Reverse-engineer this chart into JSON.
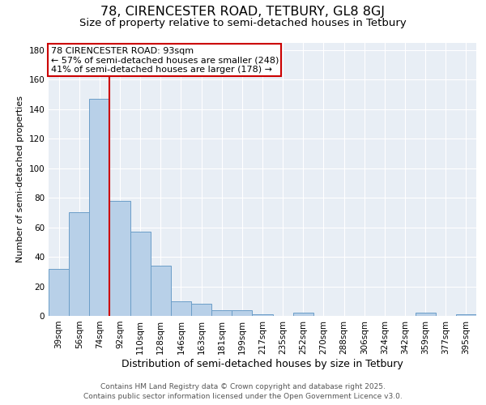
{
  "title1": "78, CIRENCESTER ROAD, TETBURY, GL8 8GJ",
  "title2": "Size of property relative to semi-detached houses in Tetbury",
  "xlabel": "Distribution of semi-detached houses by size in Tetbury",
  "ylabel": "Number of semi-detached properties",
  "categories": [
    "39sqm",
    "56sqm",
    "74sqm",
    "92sqm",
    "110sqm",
    "128sqm",
    "146sqm",
    "163sqm",
    "181sqm",
    "199sqm",
    "217sqm",
    "235sqm",
    "252sqm",
    "270sqm",
    "288sqm",
    "306sqm",
    "324sqm",
    "342sqm",
    "359sqm",
    "377sqm",
    "395sqm"
  ],
  "values": [
    32,
    70,
    147,
    78,
    57,
    34,
    10,
    8,
    4,
    4,
    1,
    0,
    2,
    0,
    0,
    0,
    0,
    0,
    2,
    0,
    1
  ],
  "bar_color": "#b8d0e8",
  "bar_edge_color": "#6b9ec8",
  "bar_edge_width": 0.7,
  "vline_index": 3,
  "vline_color": "#cc0000",
  "annotation_line0": "78 CIRENCESTER ROAD: 93sqm",
  "annotation_line1": "← 57% of semi-detached houses are smaller (248)",
  "annotation_line2": "41% of semi-detached houses are larger (178) →",
  "annotation_box_color": "#cc0000",
  "annotation_fill": "#ffffff",
  "ylim": [
    0,
    185
  ],
  "yticks": [
    0,
    20,
    40,
    60,
    80,
    100,
    120,
    140,
    160,
    180
  ],
  "background_color": "#e8eef5",
  "grid_color": "#ffffff",
  "footer1": "Contains HM Land Registry data © Crown copyright and database right 2025.",
  "footer2": "Contains public sector information licensed under the Open Government Licence v3.0.",
  "title1_fontsize": 11.5,
  "title2_fontsize": 9.5,
  "xlabel_fontsize": 9,
  "ylabel_fontsize": 8,
  "annot_fontsize": 8,
  "tick_fontsize": 7.5,
  "footer_fontsize": 6.5
}
